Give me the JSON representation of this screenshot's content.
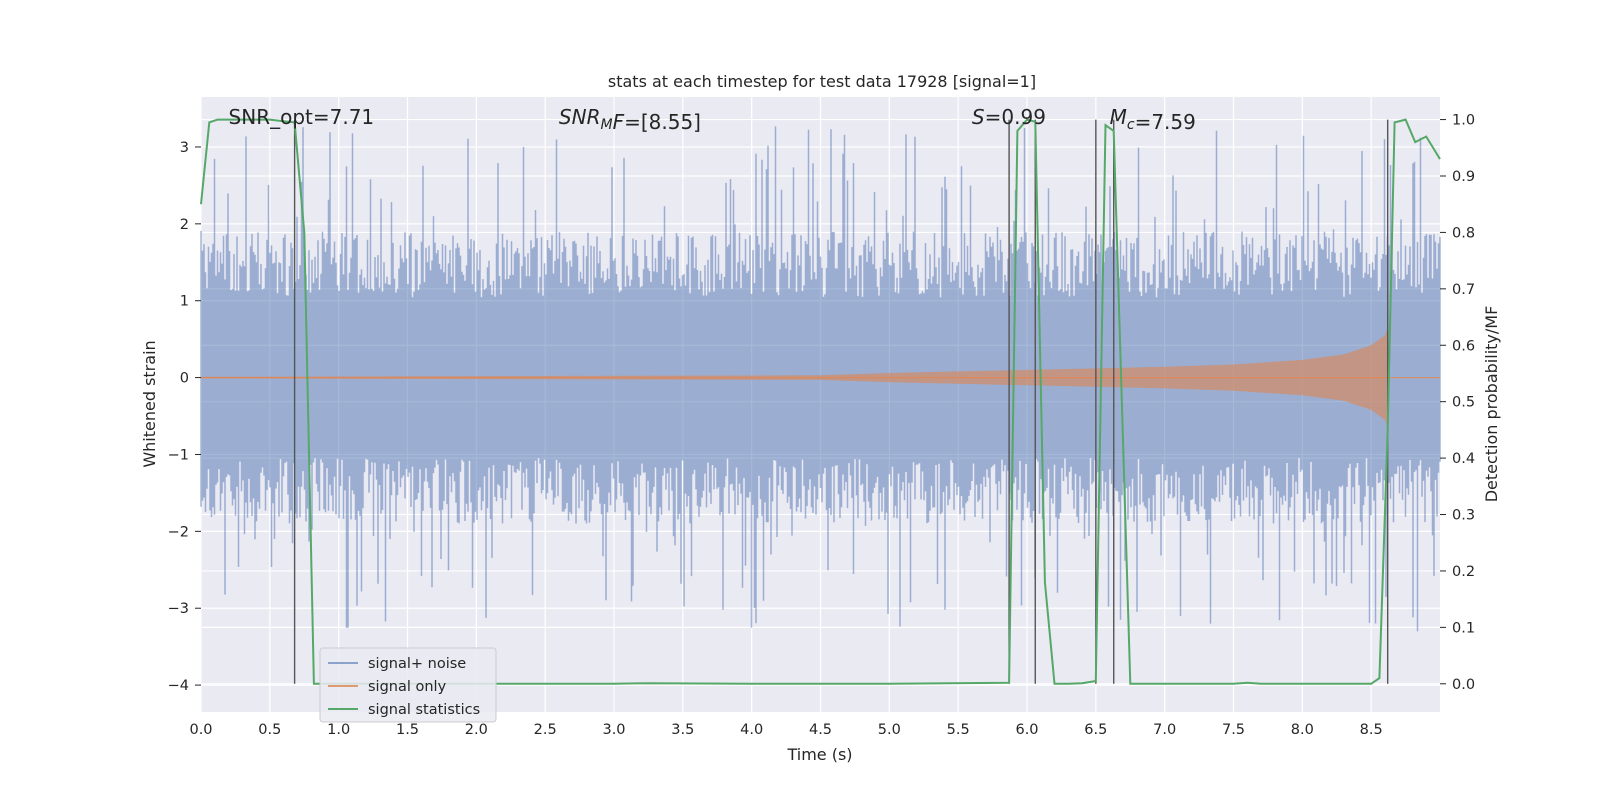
{
  "chart_data": {
    "type": "line",
    "title": "stats at each timestep for test data 17928 [signal=1]",
    "xlabel": "Time (s)",
    "ylabel": "Whitened strain",
    "ylabel_right": "Detection probability/MF",
    "xlim": [
      0,
      9
    ],
    "ylim": [
      -4.35,
      3.65
    ],
    "ylim_right": [
      -0.05,
      1.04
    ],
    "x_ticks": [
      0.0,
      0.5,
      1.0,
      1.5,
      2.0,
      2.5,
      3.0,
      3.5,
      4.0,
      4.5,
      5.0,
      5.5,
      6.0,
      6.5,
      7.0,
      7.5,
      8.0,
      8.5
    ],
    "x_tick_labels": [
      "0.0",
      "0.5",
      "1.0",
      "1.5",
      "2.0",
      "2.5",
      "3.0",
      "3.5",
      "4.0",
      "4.5",
      "5.0",
      "5.5",
      "6.0",
      "6.5",
      "7.0",
      "7.5",
      "8.0",
      "8.5"
    ],
    "y_ticks": [
      -4,
      -3,
      -2,
      -1,
      0,
      1,
      2,
      3
    ],
    "y_tick_labels": [
      "−4",
      "−3",
      "−2",
      "−1",
      "0",
      "1",
      "2",
      "3"
    ],
    "y_right_ticks": [
      0.0,
      0.1,
      0.2,
      0.3,
      0.4,
      0.5,
      0.6,
      0.7,
      0.8,
      0.9,
      1.0
    ],
    "y_right_tick_labels": [
      "0.0",
      "0.1",
      "0.2",
      "0.3",
      "0.4",
      "0.5",
      "0.6",
      "0.7",
      "0.8",
      "0.9",
      "1.0"
    ],
    "grid": true,
    "legend_placement": "lower-left",
    "legend": [
      "signal+ noise",
      "signal only",
      "signal statistics"
    ],
    "colors": {
      "signal_noise": "#4c72b0",
      "signal_only": "#dd8452",
      "signal_statistics": "#55a868",
      "vlines": "#555555",
      "background": "#eaeaf2"
    },
    "annotations": [
      {
        "text": "SNR_opt=7.71",
        "x": 0.2
      },
      {
        "text": "=[8.55]",
        "prefix_base": "SNR",
        "prefix_sub": "M",
        "prefix_tail": "F",
        "x": 2.6
      },
      {
        "text": "=0.99",
        "prefix_base": "S",
        "x": 5.6
      },
      {
        "text": "=7.59",
        "prefix_base": "M",
        "prefix_sub": "c",
        "x": 6.6
      }
    ],
    "series": [
      {
        "name": "signal statistics",
        "axis": "right",
        "x": [
          0.0,
          0.06,
          0.12,
          0.2,
          0.3,
          0.4,
          0.5,
          0.6,
          0.68,
          0.75,
          0.82,
          0.9,
          1.0,
          2.0,
          3.0,
          3.25,
          4.0,
          5.0,
          5.87,
          5.93,
          6.0,
          6.06,
          6.13,
          6.2,
          6.3,
          6.4,
          6.5,
          6.57,
          6.63,
          6.75,
          6.9,
          7.0,
          7.5,
          7.6,
          7.7,
          8.0,
          8.5,
          8.56,
          8.62,
          8.67,
          8.75,
          8.82,
          8.9,
          9.0
        ],
        "y": [
          0.85,
          0.995,
          1.0,
          1.0,
          1.0,
          1.0,
          1.0,
          0.997,
          0.995,
          0.8,
          0.0,
          0.0,
          0.0,
          0.0,
          0.0,
          0.001,
          0.0,
          0.0,
          0.002,
          0.98,
          1.0,
          0.996,
          0.18,
          0.0,
          0.0,
          0.001,
          0.005,
          0.99,
          0.98,
          0.0,
          0.0,
          0.0,
          0.0,
          0.002,
          0.0,
          0.0,
          0.0,
          0.01,
          0.45,
          0.995,
          1.0,
          0.96,
          0.97,
          0.93
        ]
      }
    ],
    "vlines_x": [
      0.68,
      5.87,
      6.06,
      6.5,
      6.63,
      8.62
    ],
    "signal_only_envelope": {
      "x": [
        0.0,
        4.5,
        5.0,
        5.5,
        6.0,
        6.5,
        7.0,
        7.5,
        8.0,
        8.3,
        8.5,
        8.6,
        8.62
      ],
      "amp": [
        0.01,
        0.03,
        0.06,
        0.08,
        0.1,
        0.12,
        0.14,
        0.17,
        0.23,
        0.3,
        0.42,
        0.55,
        0.65
      ]
    },
    "signal_noise_envelope": {
      "typical_amp": 1.9,
      "peak_amp": 3.3
    }
  }
}
